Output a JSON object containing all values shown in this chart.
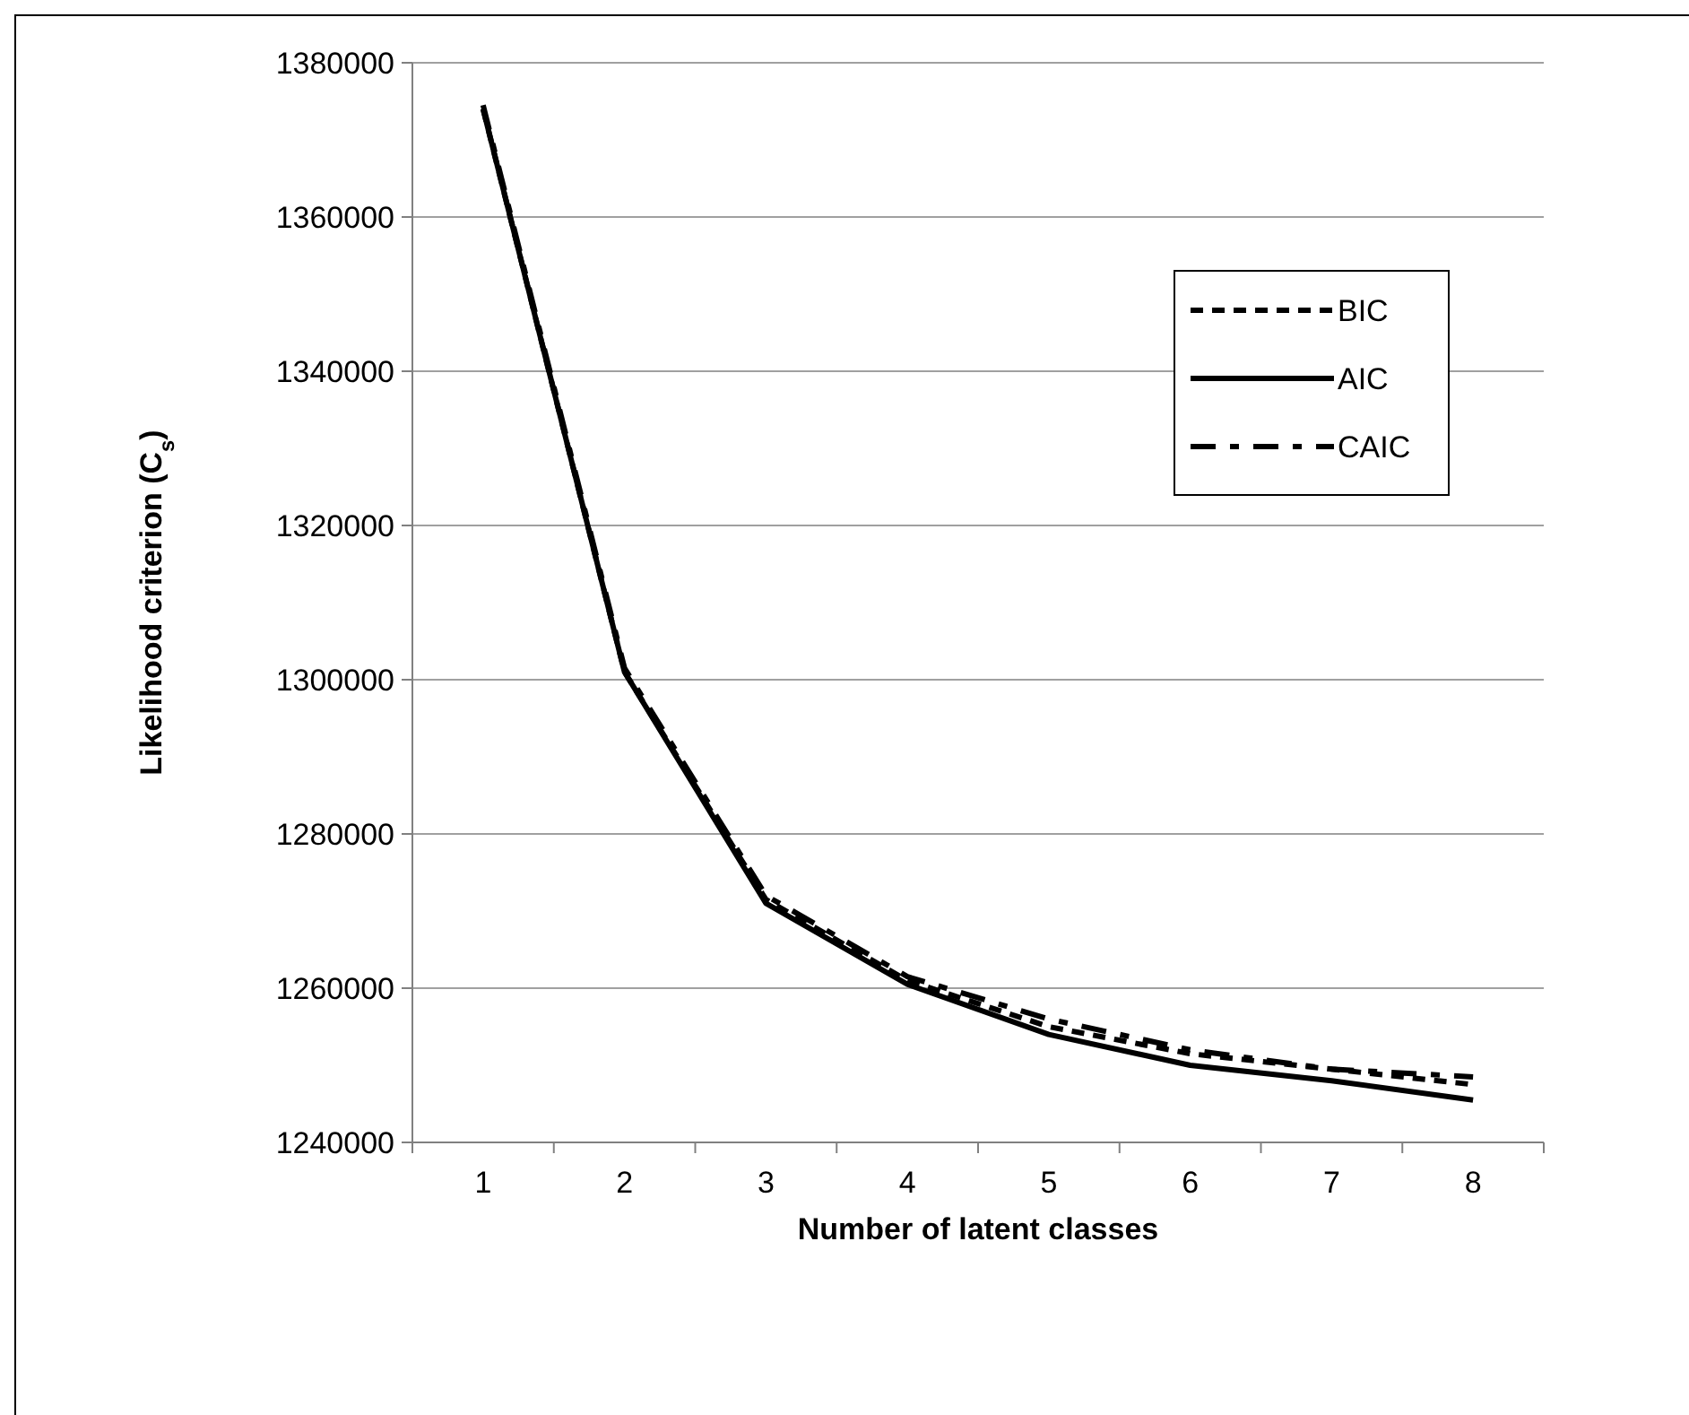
{
  "chart_data": {
    "type": "line",
    "xlabel": "Number of latent classes",
    "ylabel": "Likelihood criterion (C$_{s}$)",
    "categories": [
      "1",
      "2",
      "3",
      "4",
      "5",
      "6",
      "7",
      "8"
    ],
    "series": [
      {
        "name": "BIC",
        "color": "#000000",
        "line_style": "dashed",
        "values": [
          1374000,
          1301000,
          1271500,
          1261000,
          1255000,
          1251500,
          1249500,
          1247500
        ]
      },
      {
        "name": "AIC",
        "color": "#000000",
        "line_style": "solid",
        "values": [
          1374000,
          1301000,
          1271000,
          1260500,
          1254000,
          1250000,
          1248000,
          1245500
        ]
      },
      {
        "name": "CAIC",
        "color": "#000000",
        "line_style": "dashdot",
        "values": [
          1374500,
          1301500,
          1272000,
          1261500,
          1256000,
          1252000,
          1249500,
          1248500
        ]
      }
    ],
    "ylim": [
      1240000,
      1380000
    ],
    "yticks": [
      1240000,
      1260000,
      1280000,
      1300000,
      1320000,
      1340000,
      1360000,
      1380000
    ],
    "grid": "y",
    "legend": "top right"
  }
}
